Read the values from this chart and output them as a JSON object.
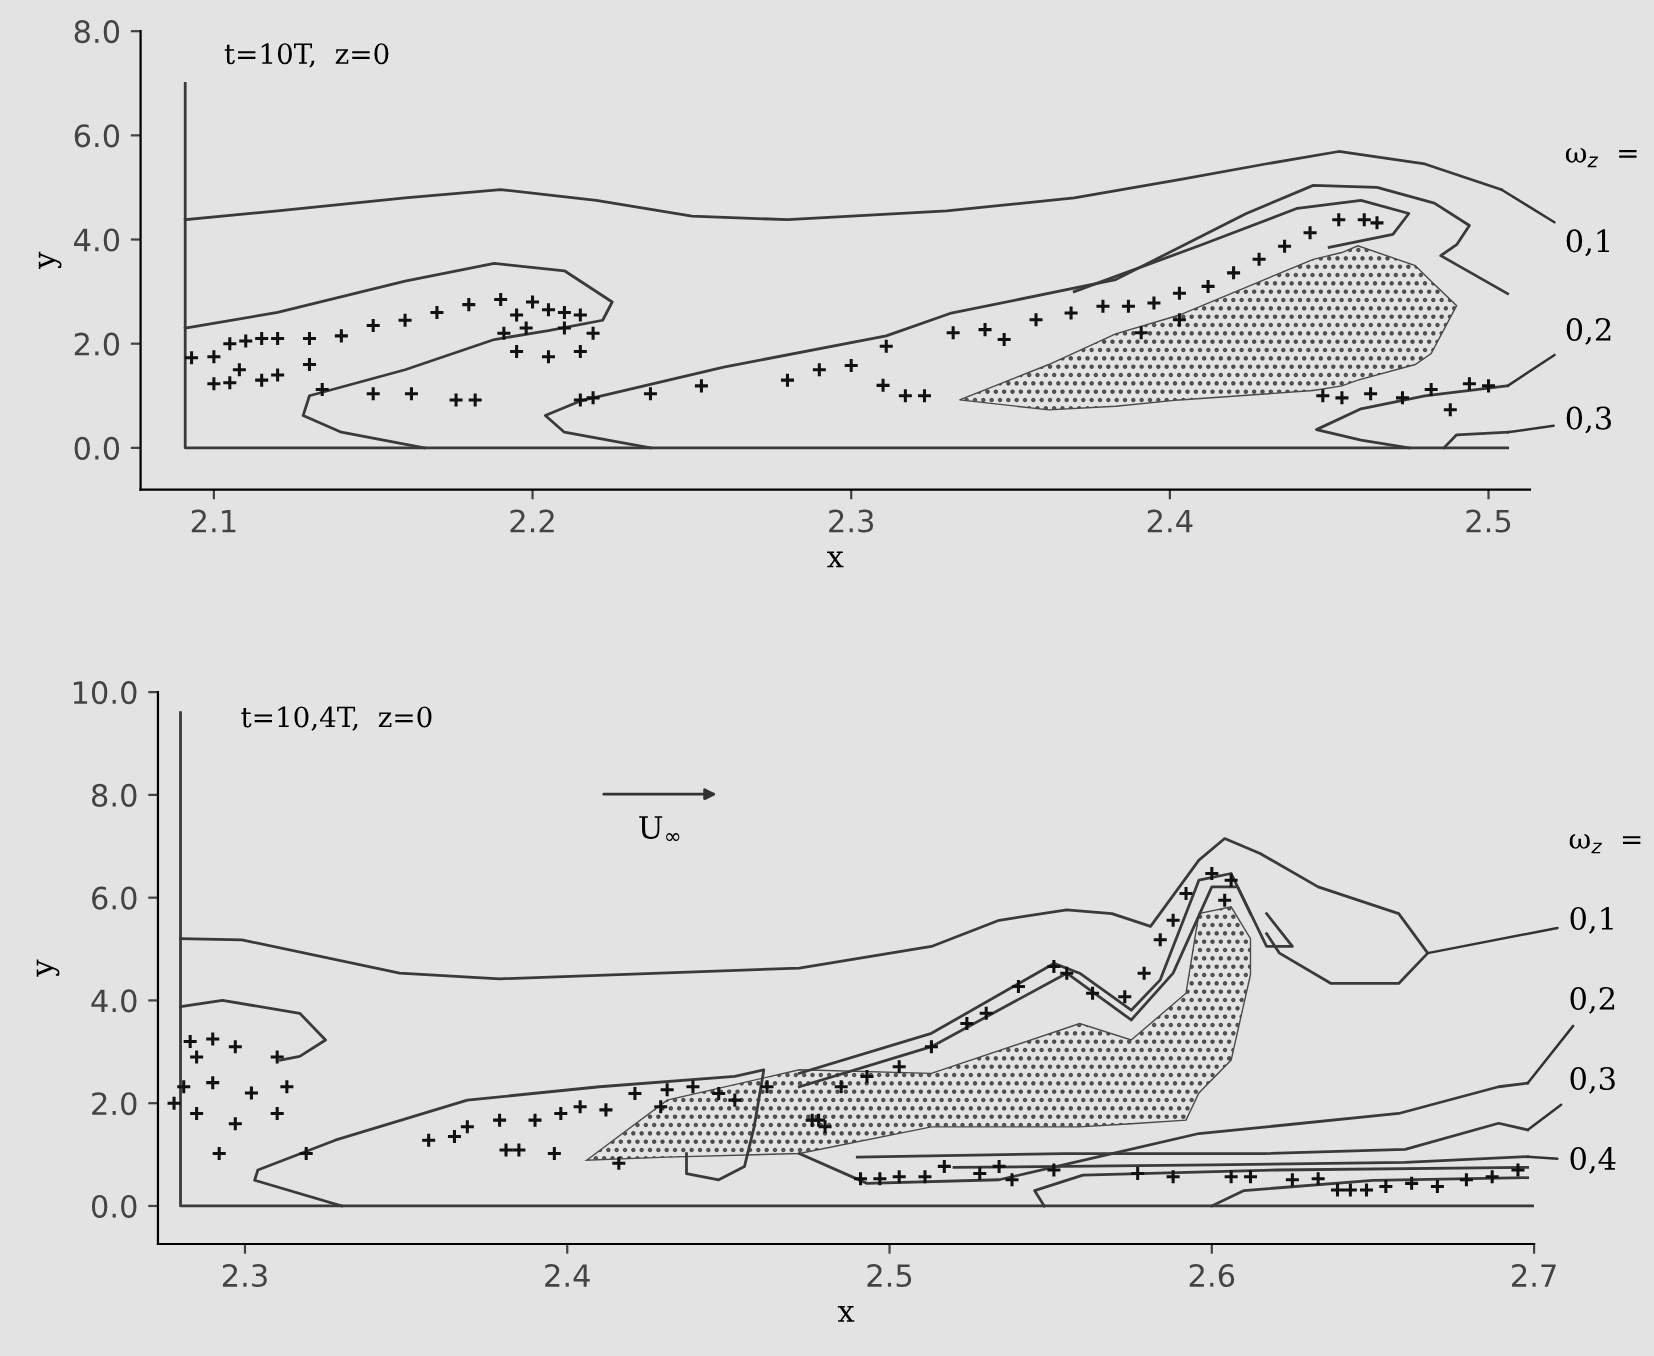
{
  "chart_data": [
    {
      "type": "line",
      "title": "t=10T,  z=0",
      "xlabel": "x",
      "ylabel": "y",
      "xlim": [
        2.077,
        2.513
      ],
      "ylim": [
        -0.8,
        8
      ],
      "xticks": [
        2.1,
        2.2,
        2.3,
        2.4,
        2.5
      ],
      "yticks": [
        {
          "value": 0,
          "label": "0.0"
        },
        {
          "value": 2,
          "label": "2.0"
        },
        {
          "value": 4,
          "label": "4.0"
        },
        {
          "value": 6,
          "label": "6.0"
        },
        {
          "value": 8,
          "label": "8.0"
        }
      ],
      "annotations": [
        "ω$_{z}$  =",
        {
          "text": "0,1",
          "x": 2.504,
          "y": 4.96
        },
        {
          "text": "0,2",
          "x": 2.506,
          "y": 1.19
        },
        {
          "text": "0,3",
          "x": 2.506,
          "y": 0.3
        }
      ],
      "series": [
        {
          "type": "line",
          "color": "#3a3a3a",
          "x": [
            2.091,
            2.091,
            2.506
          ],
          "values": [
            7,
            0,
            0
          ]
        },
        {
          "type": "area",
          "color": "#4a4a4a",
          "x": [
            2.334,
            2.362,
            2.383,
            2.403,
            2.445,
            2.454,
            2.459,
            2.477,
            2.482,
            2.49,
            2.482,
            2.477,
            2.459,
            2.454,
            2.445,
            2.403,
            2.383,
            2.362,
            2.334
          ],
          "values": [
            0.92,
            1.6,
            2.19,
            2.55,
            3.62,
            3.75,
            3.88,
            3.5,
            3.2,
            2.73,
            1.81,
            1.6,
            1.3,
            1.19,
            1.1,
            0.92,
            0.8,
            0.73,
            0.92
          ]
        },
        {
          "type": "line",
          "color": "#3a3a3a",
          "x": [
            2.091,
            2.12,
            2.16,
            2.19,
            2.22,
            2.25,
            2.28,
            2.33,
            2.37,
            2.403,
            2.43,
            2.453,
            2.48,
            2.504
          ],
          "values": [
            4.38,
            4.55,
            4.8,
            4.96,
            4.75,
            4.45,
            4.38,
            4.55,
            4.8,
            5.15,
            5.45,
            5.69,
            5.45,
            4.96
          ]
        },
        {
          "type": "line",
          "color": "#3a3a3a",
          "x": [
            2.091,
            2.12,
            2.16,
            2.188,
            2.21,
            2.225,
            2.222,
            2.205,
            2.188,
            2.16,
            2.13,
            2.128,
            2.14,
            2.166
          ],
          "values": [
            2.3,
            2.6,
            3.2,
            3.54,
            3.4,
            2.8,
            2.45,
            2.25,
            2.08,
            1.5,
            1.0,
            0.62,
            0.3,
            0.0
          ]
        },
        {
          "type": "line",
          "color": "#3a3a3a",
          "x": [
            2.237,
            2.21,
            2.204,
            2.215,
            2.26,
            2.311,
            2.331,
            2.383,
            2.424,
            2.445,
            2.465,
            2.483,
            2.494,
            2.49,
            2.485,
            2.506
          ],
          "values": [
            0,
            0.3,
            0.62,
            0.9,
            1.55,
            2.15,
            2.58,
            3.23,
            4.5,
            5.04,
            5.0,
            4.7,
            4.27,
            3.9,
            3.69,
            2.96
          ]
        },
        {
          "type": "line",
          "color": "#3a3a3a",
          "x": [
            2.37,
            2.41,
            2.44,
            2.46,
            2.475,
            2.47,
            2.45
          ],
          "values": [
            3.0,
            3.9,
            4.6,
            4.75,
            4.5,
            4.1,
            3.85
          ]
        },
        {
          "type": "line",
          "color": "#3a3a3a",
          "x": [
            2.475,
            2.46,
            2.446,
            2.46,
            2.48,
            2.506
          ],
          "values": [
            0,
            0.15,
            0.35,
            0.75,
            1.0,
            1.19
          ]
        },
        {
          "type": "line",
          "color": "#3a3a3a",
          "x": [
            2.486,
            2.49,
            2.506
          ],
          "values": [
            0,
            0.25,
            0.3
          ]
        },
        {
          "type": "scatter",
          "color": "#111111",
          "marker": "cross",
          "x": [
            2.191,
            2.195,
            2.205,
            2.215,
            2.219,
            2.215,
            2.205,
            2.195,
            2.198,
            2.21,
            2.093,
            2.1,
            2.105,
            2.11,
            2.115,
            2.12,
            2.13,
            2.14,
            2.15,
            2.16,
            2.17,
            2.18,
            2.19,
            2.2,
            2.21,
            2.1,
            2.105,
            2.115,
            2.12,
            2.13,
            2.108,
            2.134,
            2.15,
            2.162,
            2.176,
            2.182,
            2.215,
            2.219,
            2.237,
            2.253,
            2.28,
            2.29,
            2.3,
            2.31,
            2.317,
            2.323,
            2.311,
            2.332,
            2.342,
            2.348,
            2.358,
            2.369,
            2.379,
            2.387,
            2.395,
            2.403,
            2.412,
            2.42,
            2.428,
            2.436,
            2.444,
            2.453,
            2.461,
            2.465,
            2.391,
            2.403,
            2.448,
            2.454,
            2.463,
            2.473,
            2.482,
            2.488,
            2.494,
            2.5
          ],
          "values": [
            2.2,
            2.55,
            2.65,
            2.55,
            2.2,
            1.85,
            1.75,
            1.85,
            2.3,
            2.3,
            1.73,
            1.75,
            2.0,
            2.05,
            2.1,
            2.1,
            2.1,
            2.15,
            2.35,
            2.45,
            2.6,
            2.75,
            2.85,
            2.8,
            2.6,
            1.23,
            1.25,
            1.3,
            1.4,
            1.6,
            1.5,
            1.12,
            1.04,
            1.04,
            0.92,
            0.92,
            0.92,
            0.96,
            1.04,
            1.19,
            1.3,
            1.5,
            1.58,
            1.2,
            1.0,
            1.0,
            1.95,
            2.21,
            2.27,
            2.08,
            2.46,
            2.59,
            2.72,
            2.72,
            2.78,
            2.97,
            3.1,
            3.36,
            3.62,
            3.87,
            4.13,
            4.38,
            4.38,
            4.32,
            2.21,
            2.46,
            1.0,
            0.96,
            1.04,
            0.96,
            1.12,
            0.73,
            1.23,
            1.19
          ]
        }
      ]
    },
    {
      "type": "line",
      "title": "t=10,4T,  z=0",
      "xlabel": "x",
      "ylabel": "y",
      "xlim": [
        2.273,
        2.7
      ],
      "ylim": [
        -0.74,
        10
      ],
      "xticks": [
        2.3,
        2.4,
        2.5,
        2.6,
        2.7
      ],
      "yticks": [
        {
          "value": 0,
          "label": "0.0"
        },
        {
          "value": 2,
          "label": "2.0"
        },
        {
          "value": 4,
          "label": "4.0"
        },
        {
          "value": 6,
          "label": "6.0"
        },
        {
          "value": 8,
          "label": "8.0"
        },
        {
          "value": 10,
          "label": "10.0"
        }
      ],
      "annotations": [
        "ω$_{z}$  =",
        "U$_{∞}$",
        {
          "text": "0,1",
          "x": 2.667,
          "y": 4.92
        },
        {
          "text": "0,2",
          "x": 2.698,
          "y": 2.39
        },
        {
          "text": "0,3",
          "x": 2.698,
          "y": 1.48
        },
        {
          "text": "0,4",
          "x": 2.698,
          "y": 0.96
        }
      ],
      "series": [
        {
          "type": "line",
          "color": "#3a3a3a",
          "x": [
            2.28,
            2.28,
            2.7
          ],
          "values": [
            9.6,
            0,
            0
          ]
        },
        {
          "type": "area",
          "color": "#4a4a4a",
          "x": [
            2.406,
            2.431,
            2.472,
            2.513,
            2.559,
            2.575,
            2.592,
            2.596,
            2.606,
            2.612,
            2.612,
            2.606,
            2.596,
            2.592,
            2.575,
            2.559,
            2.513,
            2.472,
            2.431,
            2.406
          ],
          "values": [
            0.89,
            2.06,
            2.65,
            2.58,
            3.55,
            3.23,
            4.14,
            5.69,
            5.82,
            5.2,
            4.5,
            2.84,
            2.2,
            1.67,
            1.6,
            1.54,
            1.54,
            1.02,
            0.95,
            0.89
          ]
        },
        {
          "type": "line",
          "color": "#3a3a3a",
          "x": [
            2.28,
            2.299,
            2.348,
            2.379,
            2.472,
            2.513,
            2.534,
            2.555,
            2.569,
            2.581,
            2.596,
            2.604,
            2.615,
            2.633,
            2.658,
            2.667,
            2.658,
            2.637,
            2.621,
            2.617
          ],
          "values": [
            5.2,
            5.18,
            4.53,
            4.42,
            4.63,
            5.05,
            5.56,
            5.76,
            5.69,
            5.44,
            6.73,
            7.15,
            6.86,
            6.21,
            5.69,
            4.92,
            4.33,
            4.33,
            4.92,
            5.3
          ]
        },
        {
          "type": "line",
          "color": "#3a3a3a",
          "x": [
            2.28,
            2.293,
            2.317,
            2.325,
            2.317,
            2.311
          ],
          "values": [
            3.88,
            4.0,
            3.75,
            3.23,
            2.91,
            2.84
          ]
        },
        {
          "type": "line",
          "color": "#3a3a3a",
          "x": [
            2.33,
            2.303,
            2.304,
            2.328,
            2.369,
            2.41,
            2.452,
            2.461,
            2.458,
            2.455,
            2.447,
            2.437,
            2.437
          ],
          "values": [
            0,
            0.5,
            0.7,
            1.28,
            2.06,
            2.32,
            2.52,
            2.65,
            1.54,
            0.77,
            0.51,
            0.63,
            1.02
          ]
        },
        {
          "type": "line",
          "color": "#3a3a3a",
          "x": [
            2.472,
            2.493,
            2.534,
            2.565,
            2.596,
            2.617,
            2.658,
            2.689,
            2.698
          ],
          "values": [
            1.02,
            0.44,
            0.51,
            0.96,
            1.41,
            1.54,
            1.8,
            2.32,
            2.39
          ]
        },
        {
          "type": "line",
          "color": "#3a3a3a",
          "x": [
            2.49,
            2.554,
            2.616,
            2.66,
            2.689,
            2.698
          ],
          "values": [
            0.95,
            1.02,
            1.02,
            1.1,
            1.61,
            1.48
          ]
        },
        {
          "type": "line",
          "color": "#3a3a3a",
          "x": [
            2.52,
            2.6,
            2.66,
            2.698
          ],
          "values": [
            0.75,
            0.8,
            0.85,
            0.96
          ]
        },
        {
          "type": "line",
          "color": "#3a3a3a",
          "x": [
            2.548,
            2.545,
            2.56,
            2.62,
            2.698
          ],
          "values": [
            0,
            0.3,
            0.6,
            0.7,
            0.75
          ]
        },
        {
          "type": "line",
          "color": "#3a3a3a",
          "x": [
            2.6,
            2.61,
            2.65,
            2.698
          ],
          "values": [
            0,
            0.3,
            0.5,
            0.55
          ]
        },
        {
          "type": "line",
          "color": "#3a3a3a",
          "x": [
            2.472,
            2.513,
            2.551,
            2.559,
            2.575,
            2.584,
            2.596,
            2.606,
            2.617,
            2.625,
            2.617
          ],
          "values": [
            2.58,
            3.36,
            4.72,
            4.53,
            3.81,
            4.4,
            6.34,
            6.47,
            5.05,
            5.05,
            5.69
          ]
        },
        {
          "type": "line",
          "color": "#3a3a3a",
          "x": [
            2.472,
            2.513,
            2.555,
            2.575,
            2.588,
            2.6,
            2.608,
            2.612
          ],
          "values": [
            2.32,
            3.1,
            4.53,
            3.62,
            4.53,
            6.21,
            6.21,
            5.69
          ]
        },
        {
          "type": "scatter",
          "color": "#111111",
          "marker": "cross",
          "x": [
            2.281,
            2.285,
            2.297,
            2.31,
            2.313,
            2.31,
            2.297,
            2.285,
            2.29,
            2.302,
            2.278,
            2.283,
            2.29,
            2.292,
            2.319,
            2.357,
            2.365,
            2.369,
            2.379,
            2.381,
            2.385,
            2.39,
            2.396,
            2.398,
            2.404,
            2.412,
            2.421,
            2.429,
            2.431,
            2.439,
            2.447,
            2.452,
            2.462,
            2.416,
            2.476,
            2.48,
            2.478,
            2.485,
            2.493,
            2.503,
            2.513,
            2.524,
            2.53,
            2.54,
            2.551,
            2.555,
            2.563,
            2.573,
            2.579,
            2.584,
            2.588,
            2.592,
            2.6,
            2.606,
            2.604,
            2.491,
            2.497,
            2.503,
            2.511,
            2.517,
            2.528,
            2.534,
            2.538,
            2.551,
            2.577,
            2.588,
            2.606,
            2.612,
            2.625,
            2.633,
            2.639,
            2.643,
            2.648,
            2.654,
            2.662,
            2.67,
            2.679,
            2.687,
            2.695
          ],
          "values": [
            2.32,
            2.9,
            3.1,
            2.9,
            2.32,
            1.8,
            1.6,
            1.8,
            2.4,
            2.2,
            2.0,
            3.2,
            3.25,
            1.02,
            1.02,
            1.28,
            1.35,
            1.54,
            1.67,
            1.09,
            1.09,
            1.67,
            1.02,
            1.8,
            1.93,
            1.87,
            2.19,
            1.93,
            2.26,
            2.32,
            2.19,
            2.06,
            2.32,
            0.83,
            1.67,
            1.54,
            1.67,
            2.32,
            2.52,
            2.71,
            3.1,
            3.55,
            3.75,
            4.27,
            4.66,
            4.53,
            4.14,
            4.07,
            4.53,
            5.18,
            5.56,
            6.08,
            6.47,
            6.34,
            5.95,
            0.53,
            0.53,
            0.57,
            0.57,
            0.77,
            0.63,
            0.77,
            0.51,
            0.7,
            0.63,
            0.57,
            0.57,
            0.57,
            0.51,
            0.53,
            0.31,
            0.31,
            0.31,
            0.38,
            0.44,
            0.38,
            0.51,
            0.57,
            0.7
          ]
        }
      ]
    }
  ]
}
